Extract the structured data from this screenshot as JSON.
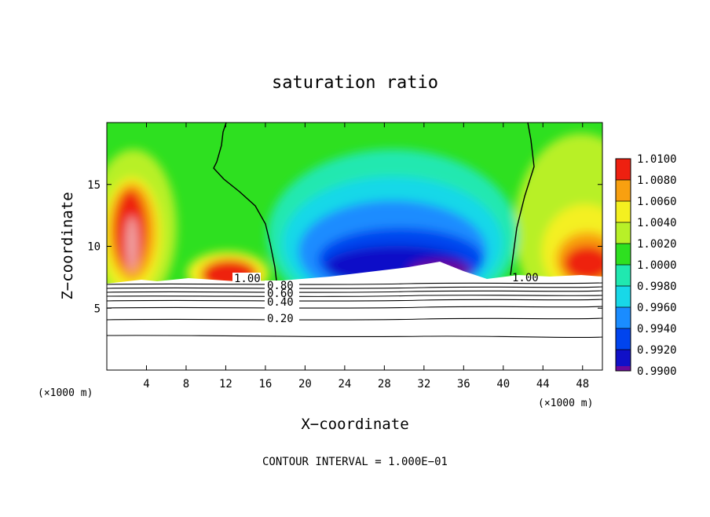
{
  "chart_data": {
    "type": "heatmap",
    "title": "saturation ratio",
    "xlabel": "X−coordinate",
    "ylabel": "Z−coordinate",
    "x_unit_left": "(×1000 m)",
    "x_unit_right": "(×1000 m)",
    "xlim": [
      0,
      50
    ],
    "ylim": [
      0,
      20
    ],
    "x_ticks": [
      4,
      8,
      12,
      16,
      20,
      24,
      28,
      32,
      36,
      40,
      44,
      48
    ],
    "y_ticks": [
      5,
      10,
      15
    ],
    "colorbar": {
      "levels": [
        0.99,
        0.992,
        0.994,
        0.996,
        0.998,
        1.0,
        1.002,
        1.004,
        1.006,
        1.008,
        1.01
      ],
      "tick_labels": [
        "0.9900",
        "0.9920",
        "0.9940",
        "0.9960",
        "0.9980",
        "1.0000",
        "1.0020",
        "1.0040",
        "1.0060",
        "1.0080",
        "1.0100"
      ],
      "colors": [
        "#6a0a9a",
        "#1010c8",
        "#0044ee",
        "#1a8cff",
        "#18d8e8",
        "#20e8b0",
        "#2ee020",
        "#b8f028",
        "#f4f020",
        "#f8a010",
        "#ee2010",
        "#f0a0a0"
      ]
    },
    "contour_lines": [
      {
        "label": "1.00",
        "value": 1.0
      },
      {
        "label": "0.80",
        "value": 0.8
      },
      {
        "label": "0.60",
        "value": 0.6
      },
      {
        "label": "0.40",
        "value": 0.4
      },
      {
        "label": "0.20",
        "value": 0.2
      }
    ],
    "right_contour_label": "1.00",
    "field_features": [
      {
        "feature": "supersaturated plume",
        "x": 2.5,
        "z_range": [
          7.5,
          16.5
        ],
        "peak": 1.0095
      },
      {
        "feature": "supersaturated lobe",
        "x": 12.5,
        "z_range": [
          7.5,
          9.5
        ],
        "peak": 1.007
      },
      {
        "feature": "subsaturated core",
        "x": 30,
        "z_range": [
          7.5,
          12
        ],
        "min": 0.9905
      },
      {
        "feature": "supersaturated lobe",
        "x": 46,
        "z_range": [
          7.5,
          12
        ],
        "peak": 1.008
      }
    ],
    "footer": "CONTOUR INTERVAL = 1.000E−01"
  }
}
